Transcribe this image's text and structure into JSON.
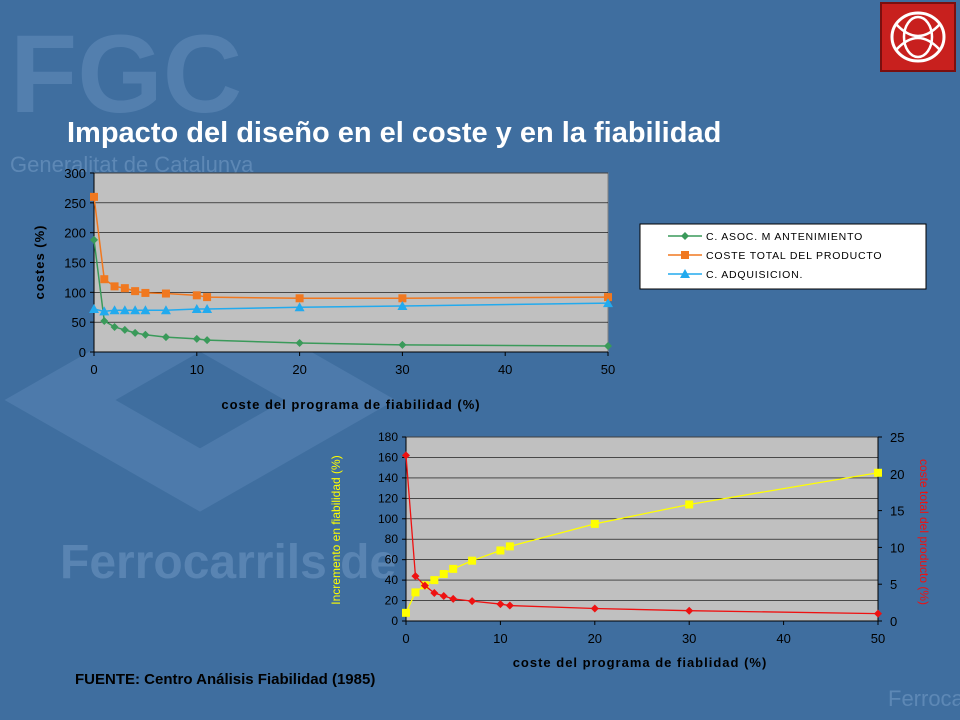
{
  "slide": {
    "title": "Impacto del diseño en el coste y en la fiabilidad",
    "source": "FUENTE: Centro Análisis Fiabilidad (1985)",
    "background_watermark": [
      "FGC",
      "Generalitat de Catalunya",
      "Ferrocarrils de la Generalitat",
      "Ferroca"
    ],
    "colors": {
      "background": "#3f6e9f",
      "plot_area": "#c0c0c0",
      "title": "#ffffff",
      "logo": "#c8201e"
    }
  },
  "chart_data": [
    {
      "type": "line",
      "xlabel": "coste del programa de fiabilidad (%)",
      "ylabel": "costes (%)",
      "xlim": [
        0,
        50
      ],
      "ylim": [
        0,
        300
      ],
      "xticks": [
        0,
        10,
        20,
        30,
        40,
        50
      ],
      "yticks": [
        0,
        50,
        100,
        150,
        200,
        250,
        300
      ],
      "grid": true,
      "legend": "right",
      "series": [
        {
          "name": "C. ASOC. M ANTENIMIENTO",
          "color": "#3a9a5a",
          "marker": "diamond",
          "x": [
            0,
            1,
            2,
            3,
            4,
            5,
            7,
            10,
            11,
            20,
            30,
            50
          ],
          "y": [
            188,
            52,
            42,
            37,
            32,
            29,
            25,
            22,
            20,
            15,
            12,
            10
          ]
        },
        {
          "name": "COSTE TOTAL DEL PRODUCTO",
          "color": "#f07820",
          "marker": "square",
          "x": [
            0,
            1,
            2,
            3,
            4,
            5,
            7,
            10,
            11,
            20,
            30,
            50
          ],
          "y": [
            260,
            122,
            110,
            107,
            102,
            99,
            98,
            95,
            92,
            90,
            90,
            92
          ]
        },
        {
          "name": "C. ADQUISICION.",
          "color": "#22aaee",
          "marker": "triangle",
          "x": [
            0,
            1,
            2,
            3,
            4,
            5,
            7,
            10,
            11,
            20,
            30,
            50
          ],
          "y": [
            72,
            68,
            70,
            70,
            70,
            70,
            70,
            72,
            72,
            75,
            77,
            82
          ]
        }
      ]
    },
    {
      "type": "line",
      "xlabel": "coste del programa de fiablidad (%)",
      "ylabel": "Incremento en fiabilidad (%)",
      "y2label": "coste total del producto (%)",
      "xlim": [
        0,
        50
      ],
      "ylim": [
        0,
        180
      ],
      "y2lim": [
        0,
        25
      ],
      "xticks": [
        0,
        10,
        20,
        30,
        40,
        50
      ],
      "yticks": [
        0,
        20,
        40,
        60,
        80,
        100,
        120,
        140,
        160,
        180
      ],
      "y2ticks": [
        0,
        5,
        10,
        15,
        20,
        25
      ],
      "grid": true,
      "series": [
        {
          "axis": "left",
          "color": "#ffff00",
          "marker": "square",
          "x": [
            0,
            1,
            2,
            3,
            4,
            5,
            7,
            10,
            11,
            20,
            30,
            50
          ],
          "y": [
            8,
            28,
            35,
            40,
            46,
            51,
            59,
            69,
            73,
            95,
            114,
            145
          ]
        },
        {
          "axis": "right",
          "color": "#ee1111",
          "marker": "diamond",
          "x": [
            0,
            1,
            2,
            3,
            4,
            5,
            7,
            10,
            11,
            20,
            30,
            50
          ],
          "y": [
            22.5,
            6.1,
            4.8,
            3.8,
            3.4,
            3.0,
            2.7,
            2.3,
            2.1,
            1.7,
            1.4,
            1.0
          ]
        }
      ]
    }
  ]
}
